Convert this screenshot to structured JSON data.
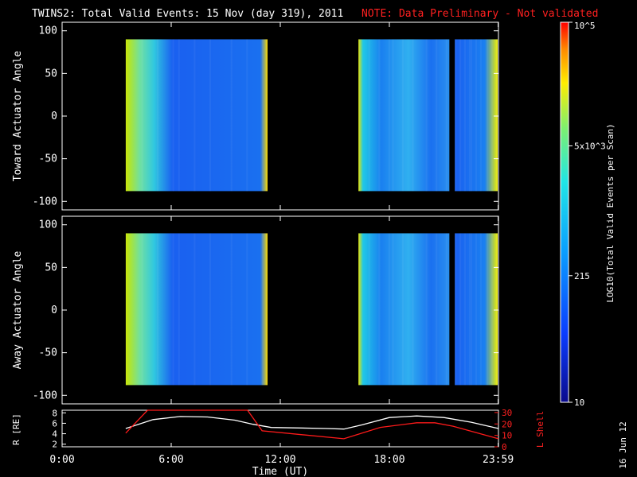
{
  "chart_data": {
    "type": "heatmap",
    "title": "TWINS2: Total Valid Events: 15 Nov (day 319), 2011",
    "note": "NOTE: Data Preliminary - Not validated",
    "xlabel": "Time (UT)",
    "x_ticks": [
      "0:00",
      "6:00",
      "12:00",
      "18:00",
      "23:59"
    ],
    "x_tick_hours": [
      0,
      6,
      12,
      18,
      23.983
    ],
    "xlim": [
      0,
      24
    ],
    "panels": [
      {
        "ylabel": "Toward Actuator Angle",
        "ylim": [
          -110,
          110
        ],
        "y_ticks": [
          100,
          50,
          0,
          -50,
          -100
        ],
        "data_blocks": [
          {
            "start": 3.5,
            "end": 11.3,
            "angle_range": [
              -88,
              90
            ],
            "style": "blk1"
          },
          {
            "start": 16.3,
            "end": 21.3,
            "angle_range": [
              -88,
              90
            ],
            "style": "blk2"
          },
          {
            "start": 21.6,
            "end": 24.0,
            "angle_range": [
              -88,
              90
            ],
            "style": "blk3"
          }
        ]
      },
      {
        "ylabel": "Away Actuator Angle",
        "ylim": [
          -110,
          110
        ],
        "y_ticks": [
          100,
          50,
          0,
          -50,
          -100
        ],
        "data_blocks": [
          {
            "start": 3.5,
            "end": 11.3,
            "angle_range": [
              -88,
              90
            ],
            "style": "blk1"
          },
          {
            "start": 16.3,
            "end": 21.3,
            "angle_range": [
              -88,
              90
            ],
            "style": "blk2"
          },
          {
            "start": 21.6,
            "end": 24.0,
            "angle_range": [
              -88,
              90
            ],
            "style": "blk3"
          }
        ]
      }
    ],
    "colorbar": {
      "label": "LOG10(Total Valid Events per Scan)",
      "scale": "log",
      "range": [
        10,
        100000
      ],
      "ticks": [
        {
          "value": 100000,
          "label": "10^5"
        },
        {
          "value": 5000,
          "label": "5x10^3"
        },
        {
          "value": 215,
          "label": "215"
        },
        {
          "value": 10,
          "label": "10"
        }
      ]
    },
    "orbit": {
      "left_label": "R [RE]",
      "right_label": "L Shell",
      "left_ticks": [
        2,
        4,
        6,
        8
      ],
      "left_range": [
        1.5,
        8.5
      ],
      "right_ticks": [
        0,
        10,
        20,
        30
      ],
      "right_range": [
        0,
        32
      ],
      "series": [
        {
          "name": "R",
          "color": "#ffffff",
          "x": [
            3.5,
            5,
            6.5,
            8,
            9.5,
            10.5,
            11.5,
            13,
            14.5,
            15.5,
            16.5,
            18,
            19.5,
            21,
            22.5,
            24
          ],
          "y": [
            5,
            6.7,
            7.3,
            7.2,
            6.6,
            5.8,
            5.2,
            5.1,
            5.0,
            4.9,
            5.7,
            7.1,
            7.4,
            7.1,
            6.2,
            5.0
          ]
        },
        {
          "name": "L Shell",
          "color": "#ff1a1a",
          "x": [
            3.5,
            4.7,
            10.2,
            11.0,
            15.5,
            17.5,
            19.5,
            20.5,
            21.5,
            24
          ],
          "y": [
            12,
            40,
            40,
            14,
            7,
            17,
            21,
            21,
            18,
            7
          ]
        }
      ]
    },
    "date_stamp": "16 Jun 12"
  }
}
